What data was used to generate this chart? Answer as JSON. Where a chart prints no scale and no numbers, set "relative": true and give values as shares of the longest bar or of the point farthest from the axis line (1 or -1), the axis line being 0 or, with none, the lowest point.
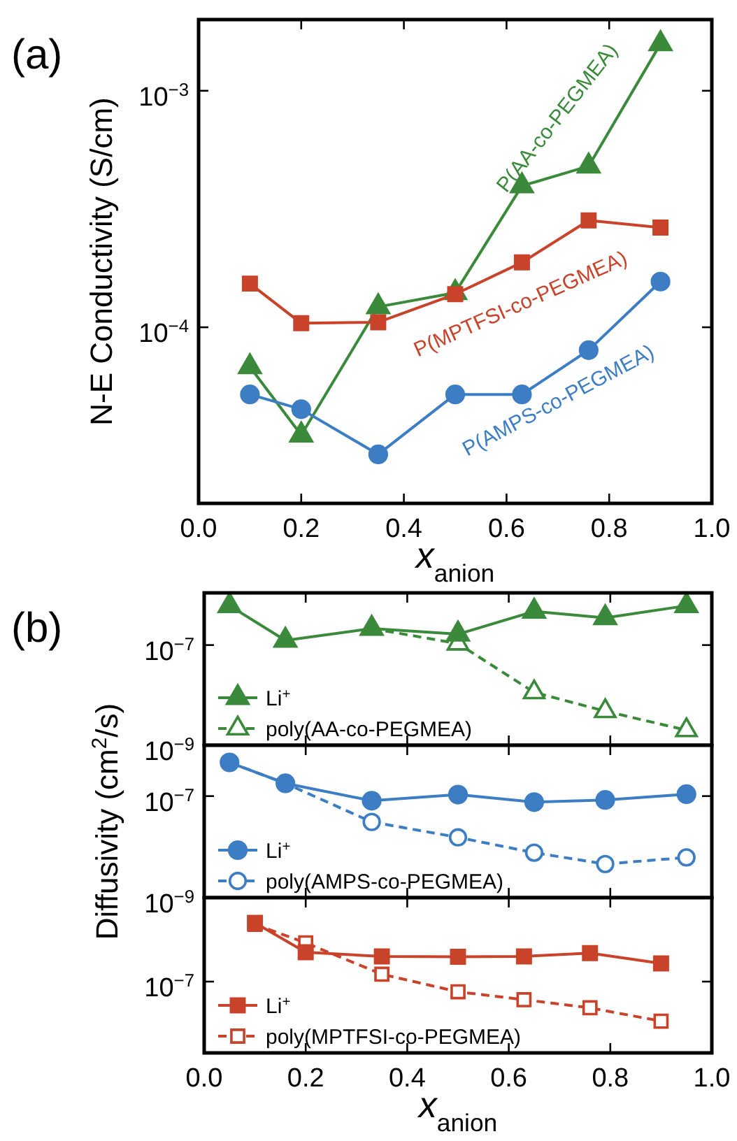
{
  "chart_data": [
    {
      "type": "line",
      "title": "(a)",
      "xlabel": "x$_{anion}$",
      "ylabel": "N-E Conductivity (S/cm)",
      "log": true,
      "legend": false,
      "xlim": [
        0,
        1
      ],
      "ylim": [
        1.8e-05,
        0.002
      ],
      "xticks": [
        {
          "value": 0,
          "label": "0.0"
        },
        {
          "value": 0.2,
          "label": "0.2"
        },
        {
          "value": 0.4,
          "label": "0.4"
        },
        {
          "value": 0.6,
          "label": "0.6"
        },
        {
          "value": 0.8,
          "label": "0.8"
        },
        {
          "value": 1,
          "label": "1.0"
        }
      ],
      "yticks": [
        {
          "value": 0.0001,
          "label": "10$^{−4}$"
        },
        {
          "value": 0.001,
          "label": "10$^{−3}$"
        }
      ],
      "x": [
        0.1,
        0.2,
        0.35,
        0.5,
        0.63,
        0.76,
        0.9
      ],
      "series": [
        {
          "name": "P(AA-co-PEGMEA)",
          "color": "#3b8a3b",
          "marker": "triangle",
          "line_style": "solid",
          "values": [
            6.8e-05,
            3.5e-05,
            0.000122,
            0.00014,
            0.000396,
            0.00048,
            0.00158
          ]
        },
        {
          "name": "P(MPTFSI-co-PEGMEA)",
          "color": "#c9432b",
          "marker": "square",
          "line_style": "solid",
          "values": [
            0.000153,
            0.000104,
            0.000105,
            0.000138,
            0.000188,
            0.000283,
            0.000264
          ]
        },
        {
          "name": "P(AMPS-co-PEGMEA)",
          "color": "#3c7dc4",
          "marker": "circle",
          "line_style": "solid",
          "values": [
            5.2e-05,
            4.5e-05,
            2.9e-05,
            5.2e-05,
            5.2e-05,
            8e-05,
            0.000156
          ]
        }
      ]
    },
    {
      "type": "line",
      "title": "(b)",
      "log": true,
      "legend": "bottom left",
      "tick_labels": "y",
      "xlim": [
        0,
        1
      ],
      "ylim": [
        1e-09,
        1.1e-06
      ],
      "xticks": [
        0,
        0.2,
        0.4,
        0.6,
        0.8,
        1
      ],
      "yticks": [
        {
          "value": 1e-09,
          "label": "10$^{−9}$"
        },
        {
          "value": 1e-07,
          "label": "10$^{−7}$"
        }
      ],
      "x": [
        0.05,
        0.16,
        0.33,
        0.5,
        0.65,
        0.79,
        0.95
      ],
      "series": [
        {
          "name": "Li$^{+}$",
          "color": "#3b8a3b",
          "marker": "triangle",
          "line_style": "solid",
          "values": [
            6.1e-07,
            1.24e-07,
            2.14e-07,
            1.65e-07,
            4.7e-07,
            3.5e-07,
            6.1e-07
          ]
        },
        {
          "name": "poly(AA-co-PEGMEA)",
          "color": "#3b8a3b",
          "marker": "triangle",
          "line_style": "dashed",
          "values": [
            null,
            null,
            2.14e-07,
            1.07e-07,
            1.14e-08,
            4.8e-09,
            2e-09
          ]
        }
      ]
    },
    {
      "type": "line",
      "ylabel": "Diffusivity (cm$^{2}$/s)",
      "log": true,
      "legend": "bottom left",
      "tick_labels": "y",
      "xlim": [
        0,
        1
      ],
      "ylim": [
        1e-09,
        1e-06
      ],
      "xticks": [
        0,
        0.2,
        0.4,
        0.6,
        0.8,
        1
      ],
      "yticks": [
        {
          "value": 1e-09,
          "label": "10$^{−9}$"
        },
        {
          "value": 1e-07,
          "label": "10$^{−7}$"
        }
      ],
      "x": [
        0.05,
        0.16,
        0.33,
        0.5,
        0.65,
        0.79,
        0.95
      ],
      "series": [
        {
          "name": "Li$^{+}$",
          "color": "#3c7dc4",
          "marker": "circle",
          "line_style": "solid",
          "values": [
            4.6e-07,
            1.78e-07,
            8.1e-08,
            1.07e-07,
            7.6e-08,
            8.4e-08,
            1.09e-07
          ]
        },
        {
          "name": "poly(AMPS-co-PEGMEA)",
          "color": "#3c7dc4",
          "marker": "circle",
          "line_style": "dashed",
          "values": [
            4.6e-07,
            1.78e-07,
            3.1e-08,
            1.54e-08,
            7.7e-09,
            4.6e-09,
            6.2e-09
          ]
        }
      ]
    },
    {
      "type": "line",
      "xlabel": "x$_{anion}$",
      "relative": true,
      "annotations": [
        "10$^{−7}$"
      ],
      "legend": "bottom left",
      "xlim": [
        0,
        1
      ],
      "xticks": [
        {
          "value": 0,
          "label": "0.0"
        },
        {
          "value": 0.2,
          "label": "0.2"
        },
        {
          "value": 0.4,
          "label": "0.4"
        },
        {
          "value": 0.6,
          "label": "0.6"
        },
        {
          "value": 0.8,
          "label": "0.8"
        },
        {
          "value": 1,
          "label": "1.0"
        }
      ],
      "x": [
        0.1,
        0.2,
        0.35,
        0.5,
        0.63,
        0.76,
        0.9
      ],
      "series": [
        {
          "name": "Li$^{+}$",
          "color": "#c9432b",
          "marker": "square",
          "line_style": "solid",
          "values": [
            1,
            0.774,
            0.742,
            0.739,
            0.742,
            0.767,
            0.688
          ]
        },
        {
          "name": "poly(MPTFSI-co-PEGMEA)",
          "color": "#c9432b",
          "marker": "square",
          "line_style": "dashed",
          "values": [
            0.989,
            0.846,
            0.605,
            0.47,
            0.409,
            0.347,
            0.244
          ]
        }
      ]
    }
  ]
}
